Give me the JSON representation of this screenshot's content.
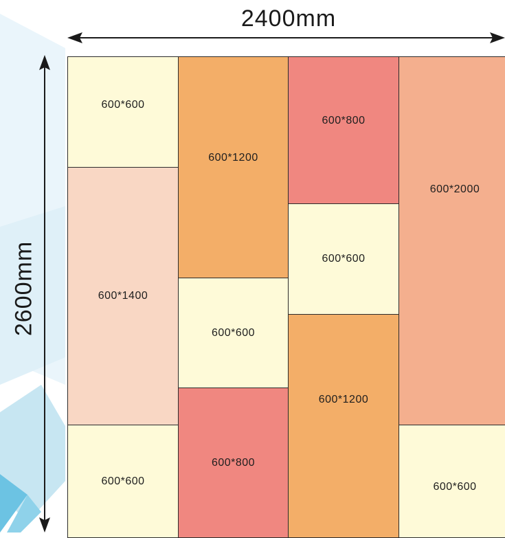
{
  "dimensions": {
    "width_label": "2400mm",
    "height_label": "2600mm"
  },
  "colors": {
    "light_yellow": "#fefad8",
    "orange": "#f3ae68",
    "red": "#f08780",
    "peach": "#f9d7c4",
    "salmon": "#f4af8e"
  },
  "columns": [
    {
      "panels": [
        {
          "label": "600*600",
          "color": "#fefad8"
        },
        {
          "label": "600*1400",
          "color": "#f9d7c4"
        },
        {
          "label": "600*600",
          "color": "#fefad8"
        }
      ]
    },
    {
      "panels": [
        {
          "label": "600*1200",
          "color": "#f3ae68"
        },
        {
          "label": "600*600",
          "color": "#fefad8"
        },
        {
          "label": "600*800",
          "color": "#f08780"
        }
      ]
    },
    {
      "panels": [
        {
          "label": "600*800",
          "color": "#f08780"
        },
        {
          "label": "600*600",
          "color": "#fefad8"
        },
        {
          "label": "600*1200",
          "color": "#f3ae68"
        }
      ]
    },
    {
      "panels": [
        {
          "label": "600*2000",
          "color": "#f4af8e"
        },
        {
          "label": "600*600",
          "color": "#fefad8"
        }
      ]
    }
  ]
}
